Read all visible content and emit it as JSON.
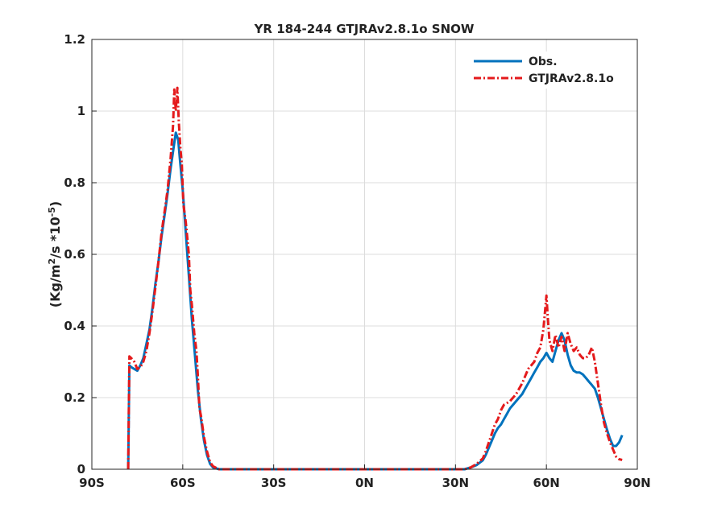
{
  "chart_data": {
    "type": "line",
    "title": "YR 184-244 GTJRAv2.8.1o SNOW",
    "xlabel": "",
    "ylabel_base": "(Kg/m",
    "ylabel_sup1": "2",
    "ylabel_mid": "/s *10",
    "ylabel_sup2": "-5",
    "ylabel_end": ")",
    "xlim": [
      -90,
      90
    ],
    "ylim": [
      0,
      1.2
    ],
    "xticks": [
      -90,
      -60,
      -30,
      0,
      30,
      60,
      90
    ],
    "xtick_labels": [
      "90S",
      "60S",
      "30S",
      "0N",
      "30N",
      "60N",
      "90N"
    ],
    "yticks": [
      0,
      0.2,
      0.4,
      0.6,
      0.8,
      1.0,
      1.2
    ],
    "ytick_labels": [
      "0",
      "0.2",
      "0.4",
      "0.6",
      "0.8",
      "1",
      "1.2"
    ],
    "grid": true,
    "legend_position": "top-right",
    "series": [
      {
        "name": "Obs.",
        "color": "#0072BD",
        "style": "solid",
        "points": [
          [
            -78,
            0
          ],
          [
            -77.6,
            0.29
          ],
          [
            -77,
            0.285
          ],
          [
            -76,
            0.28
          ],
          [
            -75,
            0.275
          ],
          [
            -74,
            0.29
          ],
          [
            -73,
            0.31
          ],
          [
            -72,
            0.35
          ],
          [
            -71,
            0.39
          ],
          [
            -70,
            0.45
          ],
          [
            -69,
            0.52
          ],
          [
            -68,
            0.58
          ],
          [
            -67,
            0.65
          ],
          [
            -66,
            0.71
          ],
          [
            -65,
            0.77
          ],
          [
            -64,
            0.84
          ],
          [
            -63,
            0.9
          ],
          [
            -62.3,
            0.94
          ],
          [
            -61.5,
            0.92
          ],
          [
            -61,
            0.87
          ],
          [
            -60,
            0.78
          ],
          [
            -59,
            0.66
          ],
          [
            -58,
            0.54
          ],
          [
            -57,
            0.42
          ],
          [
            -56,
            0.32
          ],
          [
            -55,
            0.22
          ],
          [
            -54,
            0.14
          ],
          [
            -53,
            0.08
          ],
          [
            -52,
            0.04
          ],
          [
            -51,
            0.015
          ],
          [
            -50,
            0.005
          ],
          [
            -48,
            0
          ],
          [
            -30,
            0
          ],
          [
            0,
            0
          ],
          [
            30,
            0
          ],
          [
            33,
            0
          ],
          [
            35,
            0.005
          ],
          [
            37,
            0.012
          ],
          [
            39,
            0.025
          ],
          [
            40,
            0.04
          ],
          [
            41,
            0.06
          ],
          [
            42,
            0.08
          ],
          [
            43,
            0.1
          ],
          [
            44,
            0.115
          ],
          [
            45,
            0.125
          ],
          [
            46,
            0.14
          ],
          [
            47,
            0.155
          ],
          [
            48,
            0.17
          ],
          [
            49,
            0.18
          ],
          [
            50,
            0.19
          ],
          [
            51,
            0.2
          ],
          [
            52,
            0.21
          ],
          [
            53,
            0.225
          ],
          [
            54,
            0.24
          ],
          [
            55,
            0.255
          ],
          [
            56,
            0.27
          ],
          [
            57,
            0.285
          ],
          [
            58,
            0.3
          ],
          [
            59,
            0.31
          ],
          [
            60,
            0.325
          ],
          [
            61,
            0.31
          ],
          [
            62,
            0.3
          ],
          [
            63,
            0.33
          ],
          [
            64,
            0.36
          ],
          [
            65,
            0.38
          ],
          [
            66,
            0.36
          ],
          [
            67,
            0.32
          ],
          [
            68,
            0.29
          ],
          [
            69,
            0.275
          ],
          [
            70,
            0.27
          ],
          [
            71,
            0.27
          ],
          [
            72,
            0.265
          ],
          [
            73,
            0.255
          ],
          [
            74,
            0.245
          ],
          [
            75,
            0.235
          ],
          [
            76,
            0.225
          ],
          [
            77,
            0.2
          ],
          [
            78,
            0.17
          ],
          [
            79,
            0.14
          ],
          [
            80,
            0.11
          ],
          [
            81,
            0.085
          ],
          [
            82,
            0.065
          ],
          [
            83,
            0.065
          ],
          [
            84,
            0.075
          ],
          [
            85,
            0.095
          ]
        ]
      },
      {
        "name": "GTJRAv2.8.1o",
        "color": "#E41A1C",
        "style": "dashdot",
        "points": [
          [
            -78,
            0
          ],
          [
            -77.6,
            0.315
          ],
          [
            -77,
            0.31
          ],
          [
            -76,
            0.3
          ],
          [
            -75,
            0.28
          ],
          [
            -74,
            0.285
          ],
          [
            -73,
            0.3
          ],
          [
            -72,
            0.33
          ],
          [
            -71,
            0.38
          ],
          [
            -70,
            0.44
          ],
          [
            -69,
            0.51
          ],
          [
            -68,
            0.58
          ],
          [
            -67,
            0.66
          ],
          [
            -66,
            0.72
          ],
          [
            -65,
            0.78
          ],
          [
            -64,
            0.87
          ],
          [
            -63.2,
            0.96
          ],
          [
            -62.8,
            1.06
          ],
          [
            -62.3,
            1.0
          ],
          [
            -61.8,
            1.065
          ],
          [
            -61.3,
            0.97
          ],
          [
            -60.8,
            0.9
          ],
          [
            -60.3,
            0.85
          ],
          [
            -59.8,
            0.74
          ],
          [
            -59,
            0.69
          ],
          [
            -58,
            0.6
          ],
          [
            -57.5,
            0.5
          ],
          [
            -57,
            0.46
          ],
          [
            -56.2,
            0.38
          ],
          [
            -55.5,
            0.33
          ],
          [
            -55,
            0.26
          ],
          [
            -54.5,
            0.17
          ],
          [
            -54,
            0.15
          ],
          [
            -53,
            0.09
          ],
          [
            -52,
            0.05
          ],
          [
            -51,
            0.02
          ],
          [
            -50,
            0.008
          ],
          [
            -48,
            0
          ],
          [
            -30,
            0
          ],
          [
            0,
            0
          ],
          [
            30,
            0
          ],
          [
            33,
            0
          ],
          [
            35,
            0.005
          ],
          [
            37,
            0.015
          ],
          [
            39,
            0.03
          ],
          [
            40,
            0.05
          ],
          [
            41,
            0.075
          ],
          [
            42,
            0.1
          ],
          [
            43,
            0.125
          ],
          [
            44,
            0.14
          ],
          [
            45,
            0.165
          ],
          [
            46,
            0.18
          ],
          [
            47,
            0.185
          ],
          [
            48,
            0.19
          ],
          [
            49,
            0.2
          ],
          [
            50,
            0.21
          ],
          [
            51,
            0.225
          ],
          [
            52,
            0.24
          ],
          [
            53,
            0.26
          ],
          [
            54,
            0.28
          ],
          [
            55,
            0.29
          ],
          [
            56,
            0.3
          ],
          [
            57,
            0.325
          ],
          [
            58,
            0.34
          ],
          [
            59,
            0.39
          ],
          [
            60,
            0.485
          ],
          [
            60.5,
            0.42
          ],
          [
            61,
            0.36
          ],
          [
            62,
            0.33
          ],
          [
            63,
            0.375
          ],
          [
            64,
            0.34
          ],
          [
            65,
            0.37
          ],
          [
            66,
            0.33
          ],
          [
            67,
            0.38
          ],
          [
            68,
            0.35
          ],
          [
            69,
            0.33
          ],
          [
            70,
            0.34
          ],
          [
            71,
            0.32
          ],
          [
            72,
            0.31
          ],
          [
            73,
            0.31
          ],
          [
            74,
            0.32
          ],
          [
            75,
            0.34
          ],
          [
            76,
            0.3
          ],
          [
            77,
            0.24
          ],
          [
            78,
            0.18
          ],
          [
            79,
            0.13
          ],
          [
            80,
            0.1
          ],
          [
            81,
            0.075
          ],
          [
            82,
            0.055
          ],
          [
            83,
            0.035
          ],
          [
            84,
            0.028
          ],
          [
            85,
            0.026
          ]
        ]
      }
    ]
  }
}
